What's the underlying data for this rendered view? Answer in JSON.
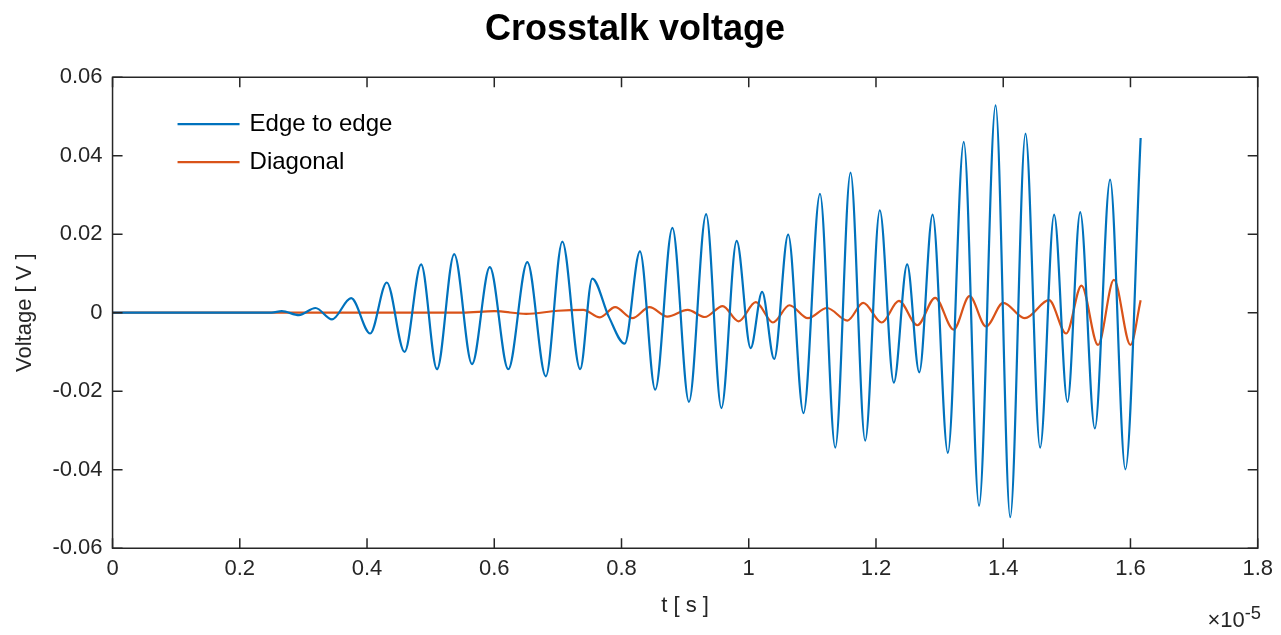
{
  "chart_data": {
    "type": "line",
    "title": "Crosstalk voltage",
    "xlabel": "t [ s ]",
    "ylabel": "Voltage [ V ]",
    "annotations": [
      "×10$^{-5}$"
    ],
    "xlim": [
      0,
      1.8
    ],
    "xticks": [
      0,
      0.2,
      0.4,
      0.6,
      0.8,
      1,
      1.2,
      1.4,
      1.6,
      1.8
    ],
    "ylim": [
      -0.06,
      0.06
    ],
    "yticks": [
      -0.06,
      -0.04,
      -0.02,
      0,
      0.02,
      0.04,
      0.06
    ],
    "grid": false,
    "legend": "top left",
    "marker": "none",
    "line_style": "solid",
    "series": [
      {
        "name": "Edge to edge",
        "color": "#0072bd",
        "x": [
          0,
          0.25,
          0.266,
          0.293,
          0.319,
          0.345,
          0.375,
          0.405,
          0.431,
          0.459,
          0.485,
          0.51,
          0.537,
          0.565,
          0.593,
          0.622,
          0.652,
          0.681,
          0.707,
          0.735,
          0.754,
          0.78,
          0.805,
          0.829,
          0.853,
          0.88,
          0.906,
          0.933,
          0.957,
          0.981,
          1.003,
          1.021,
          1.04,
          1.062,
          1.086,
          1.112,
          1.136,
          1.16,
          1.183,
          1.206,
          1.228,
          1.249,
          1.268,
          1.289,
          1.313,
          1.338,
          1.362,
          1.388,
          1.411,
          1.435,
          1.458,
          1.48,
          1.501,
          1.521,
          1.544,
          1.568,
          1.592,
          1.616
        ],
        "values": [
          0,
          0,
          0.0004,
          -0.0006,
          0.0012,
          -0.0017,
          0.0037,
          -0.0053,
          0.0077,
          -0.01,
          0.0123,
          -0.0144,
          0.0149,
          -0.0131,
          0.0116,
          -0.0144,
          0.0129,
          -0.0162,
          0.0181,
          -0.0144,
          0.0087,
          -0.001,
          -0.0079,
          0.0156,
          -0.0196,
          0.0216,
          -0.0227,
          0.0251,
          -0.0243,
          0.0183,
          -0.009,
          0.0053,
          -0.0118,
          0.0199,
          -0.0256,
          0.0303,
          -0.0344,
          0.0357,
          -0.0326,
          0.0261,
          -0.0178,
          0.0123,
          -0.0152,
          0.025,
          -0.0357,
          0.0435,
          -0.0492,
          0.0528,
          -0.0521,
          0.0456,
          -0.0344,
          0.025,
          -0.0227,
          0.0256,
          -0.0295,
          0.0339,
          -0.0399,
          0.0445
        ]
      },
      {
        "name": "Diagonal",
        "color": "#d95319",
        "x": [
          0,
          0.55,
          0.6,
          0.65,
          0.7,
          0.74,
          0.766,
          0.79,
          0.817,
          0.844,
          0.872,
          0.904,
          0.931,
          0.959,
          0.984,
          1.011,
          1.038,
          1.064,
          1.093,
          1.123,
          1.155,
          1.18,
          1.209,
          1.236,
          1.265,
          1.293,
          1.322,
          1.347,
          1.373,
          1.4,
          1.434,
          1.472,
          1.499,
          1.523,
          1.549,
          1.574,
          1.6,
          1.616
        ],
        "values": [
          0,
          0,
          0.0004,
          -0.0003,
          0.0005,
          0.0007,
          -0.0012,
          0.0014,
          -0.0014,
          0.0014,
          -0.001,
          0.0007,
          -0.0011,
          0.0017,
          -0.0022,
          0.0027,
          -0.0025,
          0.0019,
          -0.0014,
          0.0012,
          -0.002,
          0.0025,
          -0.0025,
          0.003,
          -0.0032,
          0.0038,
          -0.0043,
          0.0042,
          -0.0035,
          0.0025,
          -0.0014,
          0.0032,
          -0.0053,
          0.0069,
          -0.0082,
          0.0084,
          -0.0082,
          0.0032
        ]
      }
    ]
  }
}
